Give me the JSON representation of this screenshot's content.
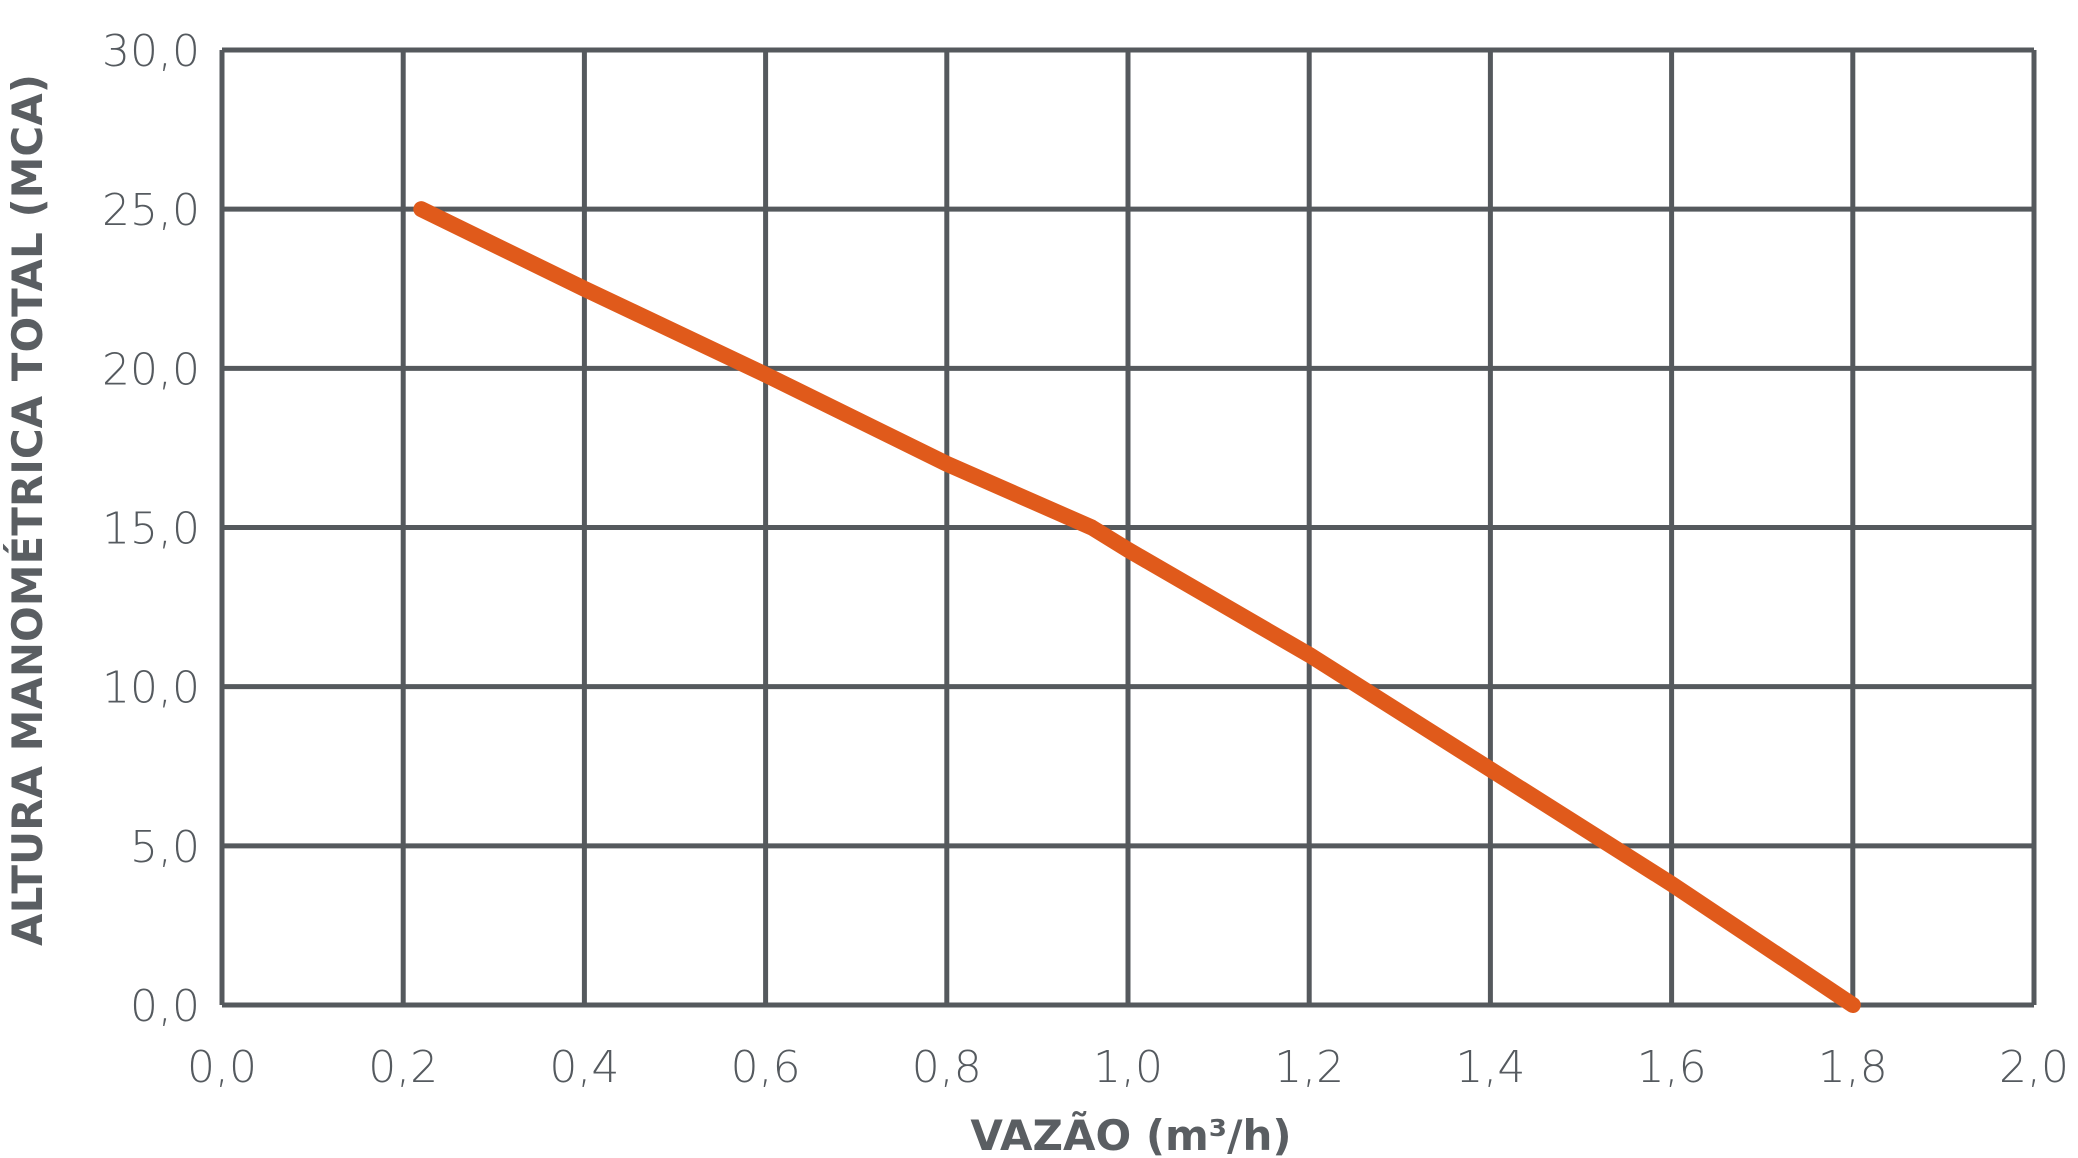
{
  "chart_data": {
    "type": "line",
    "title": "",
    "xlabel": "VAZÃO (m³/h)",
    "ylabel": "ALTURA MANOMÉTRICA TOTAL (MCA)",
    "xlim": [
      0.0,
      2.0
    ],
    "ylim": [
      0.0,
      30.0
    ],
    "grid": true,
    "legend": "none",
    "x_ticks": [
      "0,0",
      "0,2",
      "0,4",
      "0,6",
      "0,8",
      "1,0",
      "1,2",
      "1,4",
      "1,6",
      "1,8",
      "2,0"
    ],
    "y_ticks": [
      "0,0",
      "5,0",
      "10,0",
      "15,0",
      "20,0",
      "25,0",
      "30,0"
    ],
    "x_tick_values": [
      0.0,
      0.2,
      0.4,
      0.6,
      0.8,
      1.0,
      1.2,
      1.4,
      1.6,
      1.8,
      2.0
    ],
    "y_tick_values": [
      0,
      5,
      10,
      15,
      20,
      25,
      30
    ],
    "series": [
      {
        "color": "#e05a1b",
        "x": [
          0.22,
          0.4,
          0.6,
          0.8,
          0.96,
          1.0,
          1.2,
          1.4,
          1.6,
          1.8
        ],
        "y": [
          25.0,
          22.5,
          19.8,
          17.0,
          15.0,
          14.3,
          11.0,
          7.4,
          3.8,
          0.0
        ]
      }
    ]
  }
}
